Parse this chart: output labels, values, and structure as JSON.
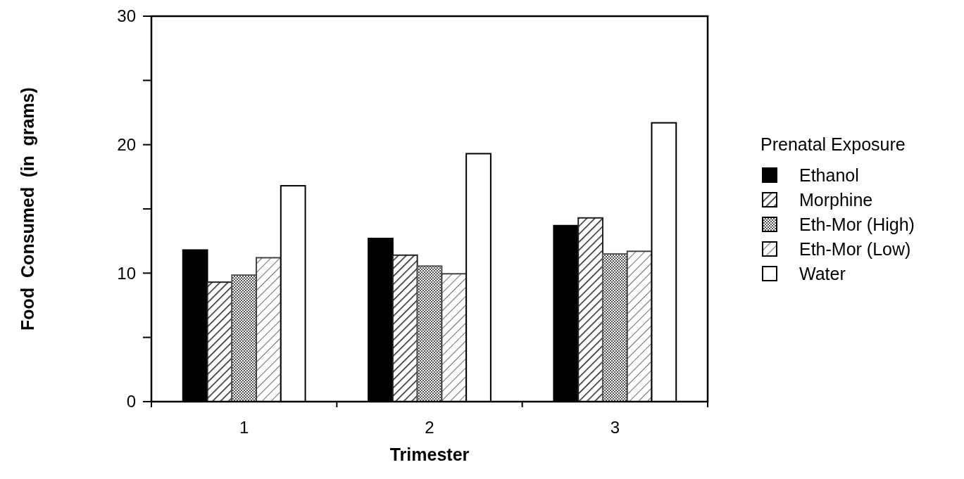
{
  "chart_data": {
    "type": "bar",
    "xlabel": "Trimester",
    "ylabel": "Food  Consumed  (in  grams)",
    "legend_title": "Prenatal Exposure",
    "categories": [
      "1",
      "2",
      "3"
    ],
    "series": [
      {
        "name": "Ethanol",
        "color": "#000000",
        "values": [
          11.8,
          12.7,
          13.7
        ]
      },
      {
        "name": "Morphine",
        "color": "#222222",
        "values": [
          9.3,
          11.4,
          14.3
        ]
      },
      {
        "name": "Eth-Mor (High)",
        "color": "#555555",
        "values": [
          9.85,
          10.55,
          11.5
        ]
      },
      {
        "name": "Eth-Mor (Low)",
        "color": "#444444",
        "values": [
          11.2,
          9.95,
          11.7
        ]
      },
      {
        "name": "Water",
        "color": "#ffffff",
        "values": [
          16.8,
          19.3,
          21.7
        ]
      }
    ],
    "ylim": [
      0,
      30
    ],
    "yticks": [
      0,
      {
        "value": 5,
        "label": null
      },
      10,
      {
        "value": 15,
        "label": null
      },
      20,
      {
        "value": 25,
        "label": null
      },
      30
    ],
    "legend": "right",
    "grid": false
  }
}
